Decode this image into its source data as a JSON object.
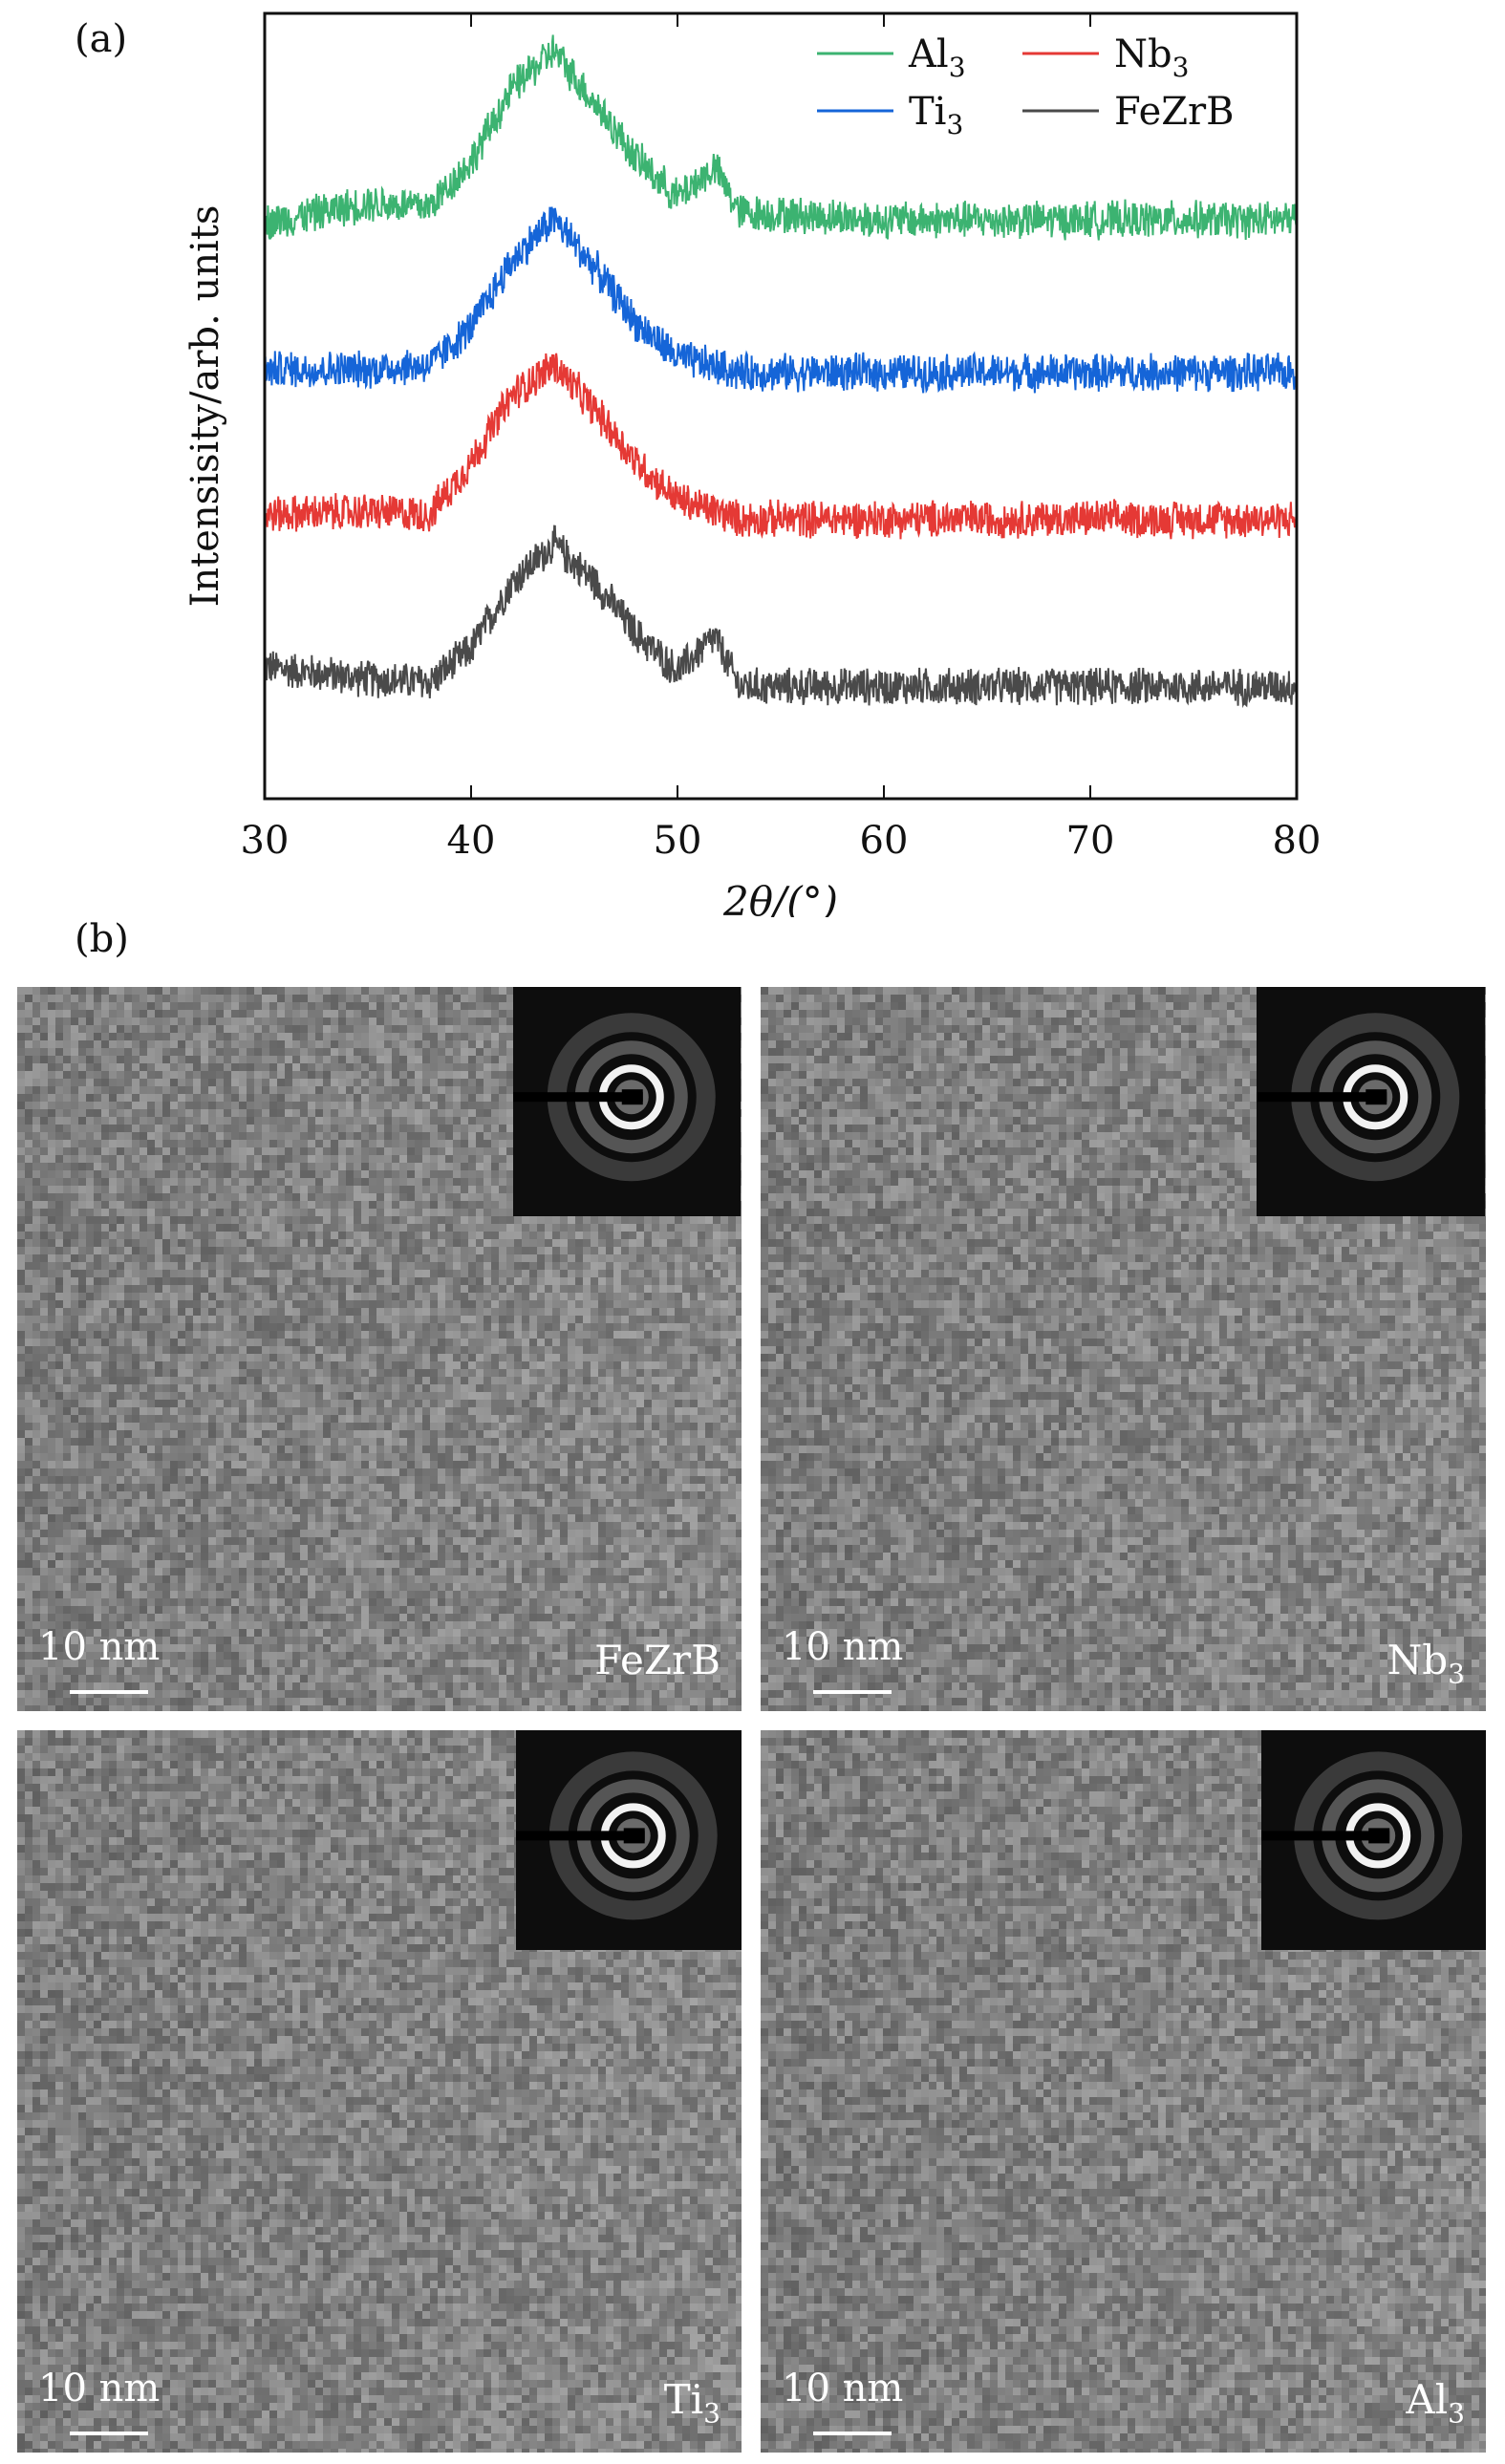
{
  "panels": {
    "a_label": "(a)",
    "b_label": "(b)"
  },
  "chart_data": {
    "type": "line",
    "xlabel": "2θ/(°)",
    "ylabel": "Intensisity/arb. units",
    "xlim": [
      30,
      80
    ],
    "xticks": [
      "30",
      "40",
      "50",
      "60",
      "70",
      "80"
    ],
    "yticks": [],
    "grid": false,
    "legend_position": "top-right",
    "series": [
      {
        "name": "Al3",
        "name_base": "Al",
        "name_sub": "3",
        "color": "#3cb371",
        "offset": 3.0,
        "baseline": 0.55,
        "peak_height": 1.05,
        "noise": 0.14,
        "x": [
          30,
          35,
          38,
          40,
          42,
          44,
          46,
          48,
          50,
          51.8,
          53,
          60,
          70,
          80
        ],
        "y": [
          3.55,
          3.68,
          3.66,
          3.96,
          4.45,
          4.7,
          4.35,
          3.98,
          3.72,
          3.92,
          3.62,
          3.57,
          3.57,
          3.57
        ]
      },
      {
        "name": "Nb3",
        "name_base": "Nb",
        "name_sub": "3",
        "color": "#e53935",
        "offset": 1.0,
        "baseline": 0.55,
        "peak_height": 1.05,
        "noise": 0.14,
        "x": [
          30,
          35,
          38,
          40,
          42,
          44,
          46,
          48,
          50,
          53,
          60,
          70,
          80
        ],
        "y": [
          1.6,
          1.62,
          1.6,
          1.95,
          2.4,
          2.6,
          2.3,
          1.95,
          1.7,
          1.57,
          1.57,
          1.57,
          1.57
        ]
      },
      {
        "name": "Ti3",
        "name_base": "Ti",
        "name_sub": "3",
        "color": "#1565d8",
        "offset": 2.0,
        "baseline": 0.55,
        "peak_height": 1.05,
        "noise": 0.14,
        "x": [
          30,
          35,
          38,
          40,
          42,
          44,
          46,
          48,
          50,
          53,
          60,
          70,
          80
        ],
        "y": [
          2.57,
          2.57,
          2.6,
          2.85,
          3.3,
          3.58,
          3.25,
          2.88,
          2.65,
          2.55,
          2.55,
          2.55,
          2.55
        ]
      },
      {
        "name": "FeZrB",
        "name_base": "FeZrB",
        "name_sub": "",
        "color": "#4a4a4a",
        "offset": 0.0,
        "baseline": 0.45,
        "peak_height": 0.95,
        "noise": 0.14,
        "x": [
          30,
          35,
          38,
          40,
          42,
          44,
          46,
          48,
          50,
          51.8,
          53,
          60,
          70,
          80
        ],
        "y": [
          0.58,
          0.5,
          0.48,
          0.7,
          1.15,
          1.4,
          1.15,
          0.8,
          0.55,
          0.78,
          0.45,
          0.45,
          0.45,
          0.45
        ]
      }
    ]
  },
  "tem_images": [
    {
      "sample_base": "FeZrB",
      "sample_sub": "",
      "scale_label": "10 nm",
      "tone": "#808080"
    },
    {
      "sample_base": "Nb",
      "sample_sub": "3",
      "scale_label": "10 nm",
      "tone": "#7a7a7a"
    },
    {
      "sample_base": "Ti",
      "sample_sub": "3",
      "scale_label": "10 nm",
      "tone": "#777777"
    },
    {
      "sample_base": "Al",
      "sample_sub": "3",
      "scale_label": "10 nm",
      "tone": "#7c7c7c"
    }
  ]
}
